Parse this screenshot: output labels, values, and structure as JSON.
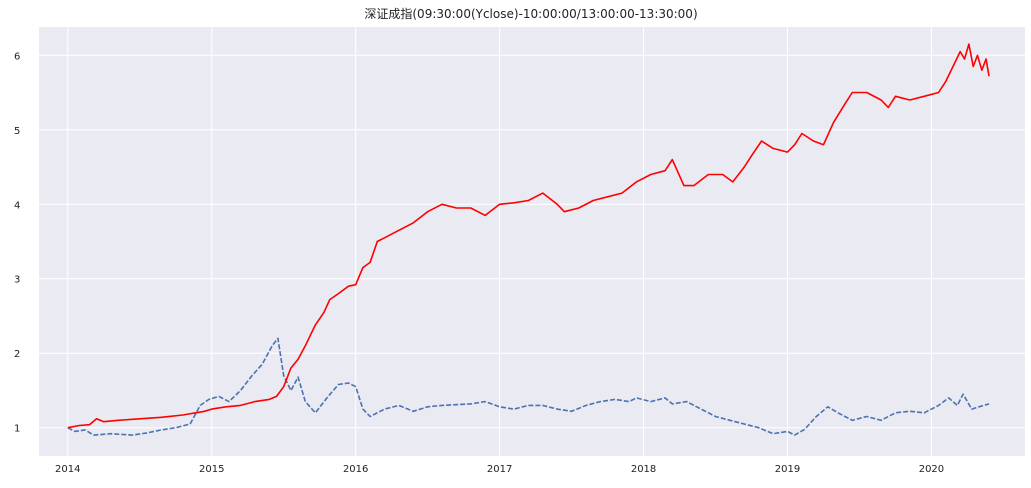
{
  "chart_data": {
    "type": "line",
    "title": "深证成指(09:30:00(Yclose)-10:00:00/13:00:00-13:30:00)",
    "xlabel": "",
    "ylabel": "",
    "x_ticks": [
      "2014",
      "2015",
      "2016",
      "2017",
      "2018",
      "2019",
      "2020"
    ],
    "y_ticks": [
      1,
      2,
      3,
      4,
      5,
      6
    ],
    "xlim": [
      2013.8,
      2020.65
    ],
    "ylim": [
      0.62,
      6.38
    ],
    "grid": true,
    "background": "#EAEAF2",
    "series": [
      {
        "color": "#FF0000",
        "style": "solid",
        "points": [
          [
            2014.0,
            1.0
          ],
          [
            2014.08,
            1.03
          ],
          [
            2014.15,
            1.04
          ],
          [
            2014.2,
            1.12
          ],
          [
            2014.25,
            1.08
          ],
          [
            2014.35,
            1.1
          ],
          [
            2014.5,
            1.12
          ],
          [
            2014.65,
            1.14
          ],
          [
            2014.8,
            1.17
          ],
          [
            2014.95,
            1.22
          ],
          [
            2015.0,
            1.25
          ],
          [
            2015.1,
            1.28
          ],
          [
            2015.2,
            1.3
          ],
          [
            2015.3,
            1.35
          ],
          [
            2015.4,
            1.38
          ],
          [
            2015.45,
            1.42
          ],
          [
            2015.5,
            1.55
          ],
          [
            2015.55,
            1.8
          ],
          [
            2015.6,
            1.92
          ],
          [
            2015.65,
            2.1
          ],
          [
            2015.72,
            2.38
          ],
          [
            2015.78,
            2.55
          ],
          [
            2015.82,
            2.72
          ],
          [
            2015.88,
            2.8
          ],
          [
            2015.95,
            2.9
          ],
          [
            2016.0,
            2.92
          ],
          [
            2016.05,
            3.15
          ],
          [
            2016.1,
            3.22
          ],
          [
            2016.15,
            3.5
          ],
          [
            2016.2,
            3.55
          ],
          [
            2016.3,
            3.65
          ],
          [
            2016.4,
            3.75
          ],
          [
            2016.5,
            3.9
          ],
          [
            2016.6,
            4.0
          ],
          [
            2016.7,
            3.95
          ],
          [
            2016.8,
            3.95
          ],
          [
            2016.9,
            3.85
          ],
          [
            2017.0,
            4.0
          ],
          [
            2017.1,
            4.02
          ],
          [
            2017.2,
            4.05
          ],
          [
            2017.3,
            4.15
          ],
          [
            2017.4,
            4.0
          ],
          [
            2017.45,
            3.9
          ],
          [
            2017.55,
            3.95
          ],
          [
            2017.65,
            4.05
          ],
          [
            2017.75,
            4.1
          ],
          [
            2017.85,
            4.15
          ],
          [
            2017.95,
            4.3
          ],
          [
            2018.05,
            4.4
          ],
          [
            2018.15,
            4.45
          ],
          [
            2018.2,
            4.6
          ],
          [
            2018.28,
            4.25
          ],
          [
            2018.35,
            4.25
          ],
          [
            2018.45,
            4.4
          ],
          [
            2018.55,
            4.4
          ],
          [
            2018.62,
            4.3
          ],
          [
            2018.7,
            4.5
          ],
          [
            2018.75,
            4.65
          ],
          [
            2018.82,
            4.85
          ],
          [
            2018.9,
            4.75
          ],
          [
            2019.0,
            4.7
          ],
          [
            2019.05,
            4.8
          ],
          [
            2019.1,
            4.95
          ],
          [
            2019.18,
            4.85
          ],
          [
            2019.25,
            4.8
          ],
          [
            2019.32,
            5.1
          ],
          [
            2019.4,
            5.35
          ],
          [
            2019.45,
            5.5
          ],
          [
            2019.55,
            5.5
          ],
          [
            2019.65,
            5.4
          ],
          [
            2019.7,
            5.3
          ],
          [
            2019.75,
            5.45
          ],
          [
            2019.85,
            5.4
          ],
          [
            2019.95,
            5.45
          ],
          [
            2020.05,
            5.5
          ],
          [
            2020.1,
            5.65
          ],
          [
            2020.15,
            5.85
          ],
          [
            2020.2,
            6.05
          ],
          [
            2020.23,
            5.95
          ],
          [
            2020.26,
            6.15
          ],
          [
            2020.29,
            5.85
          ],
          [
            2020.32,
            6.0
          ],
          [
            2020.35,
            5.8
          ],
          [
            2020.38,
            5.95
          ],
          [
            2020.4,
            5.72
          ]
        ]
      },
      {
        "color": "#4C72B0",
        "style": "dashed",
        "points": [
          [
            2014.0,
            1.0
          ],
          [
            2014.05,
            0.95
          ],
          [
            2014.12,
            0.97
          ],
          [
            2014.18,
            0.9
          ],
          [
            2014.3,
            0.92
          ],
          [
            2014.45,
            0.9
          ],
          [
            2014.55,
            0.93
          ],
          [
            2014.65,
            0.97
          ],
          [
            2014.75,
            1.0
          ],
          [
            2014.85,
            1.05
          ],
          [
            2014.92,
            1.3
          ],
          [
            2014.98,
            1.38
          ],
          [
            2015.05,
            1.42
          ],
          [
            2015.12,
            1.35
          ],
          [
            2015.2,
            1.5
          ],
          [
            2015.28,
            1.7
          ],
          [
            2015.35,
            1.85
          ],
          [
            2015.42,
            2.1
          ],
          [
            2015.46,
            2.2
          ],
          [
            2015.5,
            1.7
          ],
          [
            2015.55,
            1.5
          ],
          [
            2015.6,
            1.68
          ],
          [
            2015.65,
            1.35
          ],
          [
            2015.72,
            1.2
          ],
          [
            2015.8,
            1.4
          ],
          [
            2015.88,
            1.58
          ],
          [
            2015.95,
            1.6
          ],
          [
            2016.0,
            1.55
          ],
          [
            2016.05,
            1.25
          ],
          [
            2016.1,
            1.15
          ],
          [
            2016.2,
            1.25
          ],
          [
            2016.3,
            1.3
          ],
          [
            2016.4,
            1.22
          ],
          [
            2016.5,
            1.28
          ],
          [
            2016.6,
            1.3
          ],
          [
            2016.8,
            1.32
          ],
          [
            2016.9,
            1.35
          ],
          [
            2017.0,
            1.28
          ],
          [
            2017.1,
            1.25
          ],
          [
            2017.2,
            1.3
          ],
          [
            2017.3,
            1.3
          ],
          [
            2017.4,
            1.25
          ],
          [
            2017.5,
            1.22
          ],
          [
            2017.6,
            1.3
          ],
          [
            2017.7,
            1.35
          ],
          [
            2017.8,
            1.38
          ],
          [
            2017.9,
            1.35
          ],
          [
            2017.95,
            1.4
          ],
          [
            2018.05,
            1.35
          ],
          [
            2018.15,
            1.4
          ],
          [
            2018.2,
            1.32
          ],
          [
            2018.3,
            1.35
          ],
          [
            2018.4,
            1.25
          ],
          [
            2018.5,
            1.15
          ],
          [
            2018.6,
            1.1
          ],
          [
            2018.7,
            1.05
          ],
          [
            2018.8,
            1.0
          ],
          [
            2018.9,
            0.92
          ],
          [
            2019.0,
            0.95
          ],
          [
            2019.05,
            0.9
          ],
          [
            2019.12,
            0.98
          ],
          [
            2019.2,
            1.15
          ],
          [
            2019.28,
            1.28
          ],
          [
            2019.35,
            1.2
          ],
          [
            2019.45,
            1.1
          ],
          [
            2019.55,
            1.15
          ],
          [
            2019.65,
            1.1
          ],
          [
            2019.75,
            1.2
          ],
          [
            2019.85,
            1.22
          ],
          [
            2019.95,
            1.2
          ],
          [
            2020.05,
            1.3
          ],
          [
            2020.12,
            1.4
          ],
          [
            2020.18,
            1.3
          ],
          [
            2020.22,
            1.45
          ],
          [
            2020.28,
            1.25
          ],
          [
            2020.33,
            1.28
          ],
          [
            2020.4,
            1.32
          ]
        ]
      }
    ]
  }
}
